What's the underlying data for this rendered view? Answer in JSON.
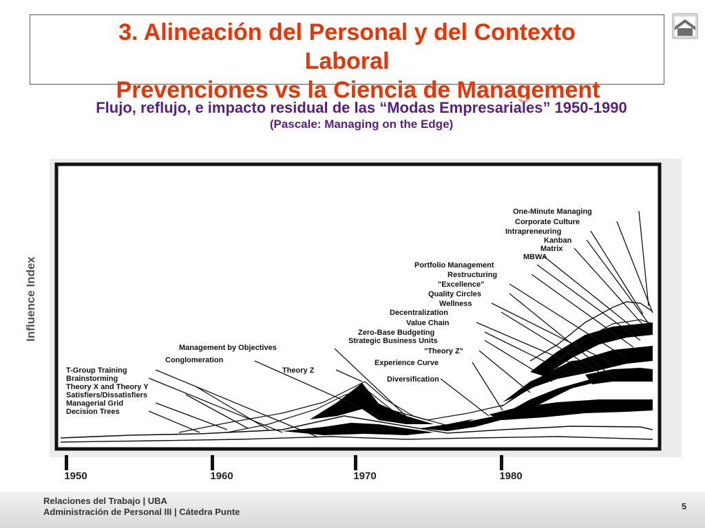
{
  "slide": {
    "title_lines": [
      "3. Alineación del Personal y del Contexto",
      "Laboral",
      "Prevenciones vs la Ciencia de Management"
    ],
    "subtitle": "Flujo, reflujo, e impacto residual de las “Modas Empresariales”  1950-1990",
    "source": "(Pascale: Managing on the Edge)",
    "footer": [
      "Relaciones del Trabajo | UBA",
      "Administración de Personal III | Cátedra Punte"
    ],
    "page_number": "5",
    "home_icon": "home-icon"
  },
  "chart_data": {
    "type": "area",
    "title": "",
    "ylabel": "Influence Index",
    "x_ticks": [
      "1950",
      "1960",
      "1970",
      "1980"
    ],
    "series": [
      {
        "name": "T-Group Training"
      },
      {
        "name": "Brainstorming"
      },
      {
        "name": "Theory X and Theory Y"
      },
      {
        "name": "Satisfiers/Dissatisfiers"
      },
      {
        "name": "Managerial Grid"
      },
      {
        "name": "Decision Trees"
      },
      {
        "name": "Management by Objectives"
      },
      {
        "name": "Conglomeration"
      },
      {
        "name": "Theory Z"
      },
      {
        "name": "Diversification"
      },
      {
        "name": "Experience Curve"
      },
      {
        "name": "\"Theory Z\""
      },
      {
        "name": "Strategic Business Units"
      },
      {
        "name": "Zero-Base Budgeting"
      },
      {
        "name": "Value Chain"
      },
      {
        "name": "Decentralization"
      },
      {
        "name": "Wellness"
      },
      {
        "name": "Quality Circles"
      },
      {
        "name": "\"Excellence\""
      },
      {
        "name": "Restructuring"
      },
      {
        "name": "Portfolio Management"
      },
      {
        "name": "MBWA"
      },
      {
        "name": "Matrix"
      },
      {
        "name": "Kanban"
      },
      {
        "name": "Intrapreneuring"
      },
      {
        "name": "Corporate Culture"
      },
      {
        "name": "One-Minute Managing"
      }
    ]
  }
}
